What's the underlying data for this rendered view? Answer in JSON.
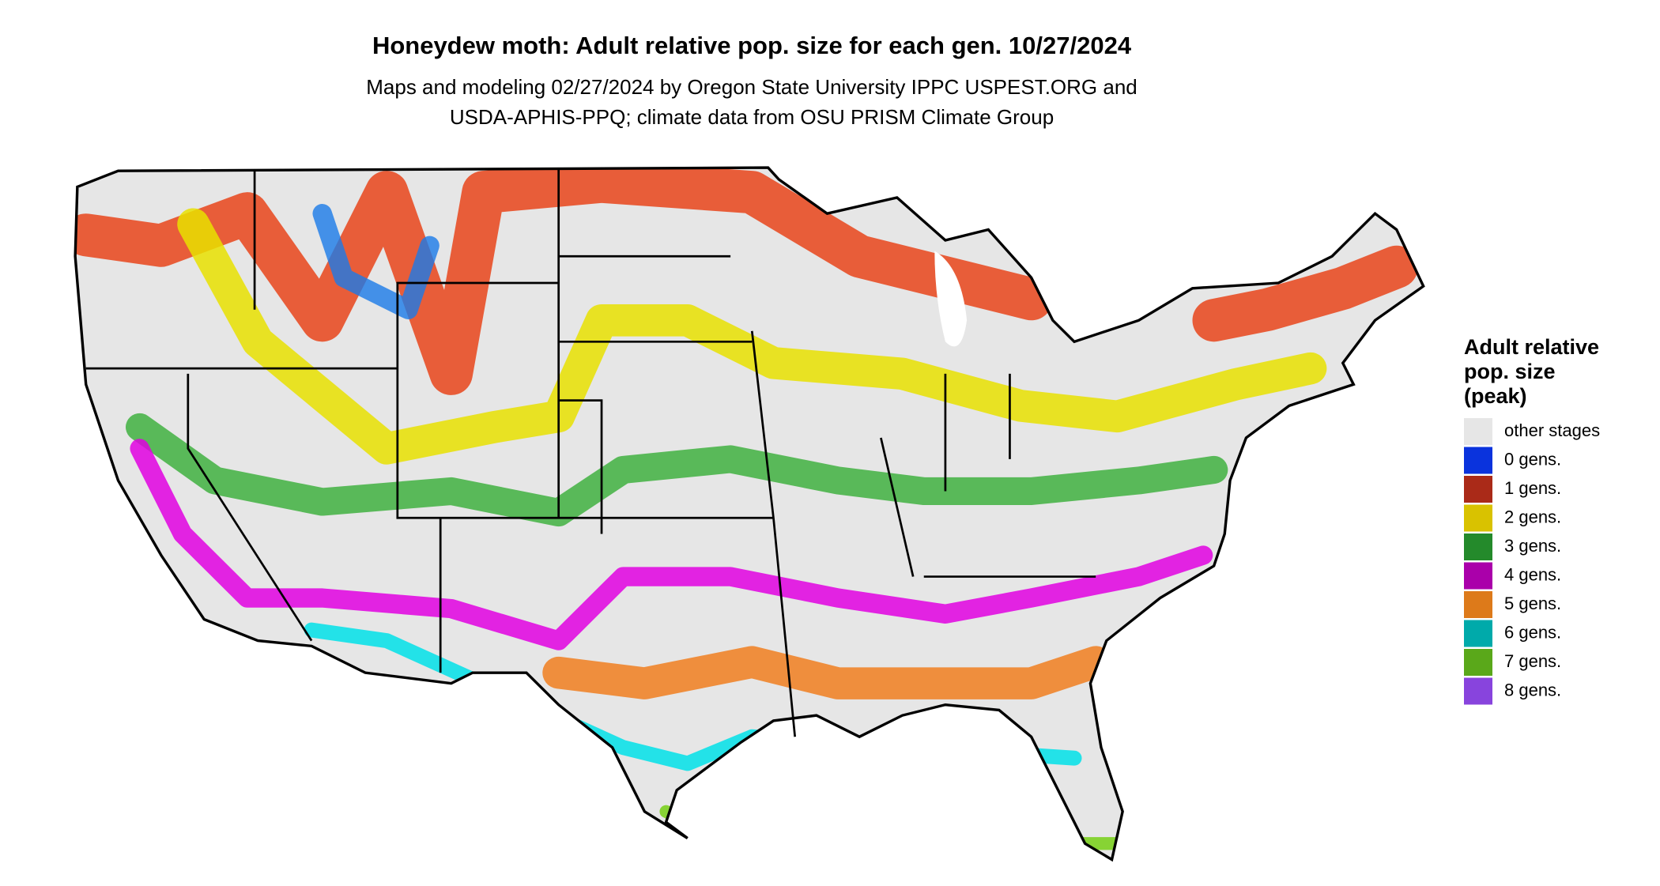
{
  "header": {
    "title": "Honeydew moth: Adult relative pop. size for each gen. 10/27/2024",
    "subtitle_lines": [
      "Maps and modeling 02/27/2024 by Oregon State University IPPC USPEST.ORG and",
      "USDA-APHIS-PPQ; climate data from OSU PRISM Climate Group"
    ]
  },
  "legend": {
    "title_lines": [
      "Adult relative",
      "pop. size",
      "(peak)"
    ],
    "items": [
      {
        "label": "other stages",
        "color": "#e6e6e6"
      },
      {
        "label": "0 gens.",
        "color": "#0a33dd"
      },
      {
        "label": "1 gens.",
        "color": "#aa2a18"
      },
      {
        "label": "2 gens.",
        "color": "#d9c200"
      },
      {
        "label": "3 gens.",
        "color": "#248a2b"
      },
      {
        "label": "4 gens.",
        "color": "#aa00aa"
      },
      {
        "label": "5 gens.",
        "color": "#dd7a1a"
      },
      {
        "label": "6 gens.",
        "color": "#00aaaa"
      },
      {
        "label": "7 gens.",
        "color": "#5aa81a"
      },
      {
        "label": "8 gens.",
        "color": "#8844dd"
      }
    ]
  }
}
